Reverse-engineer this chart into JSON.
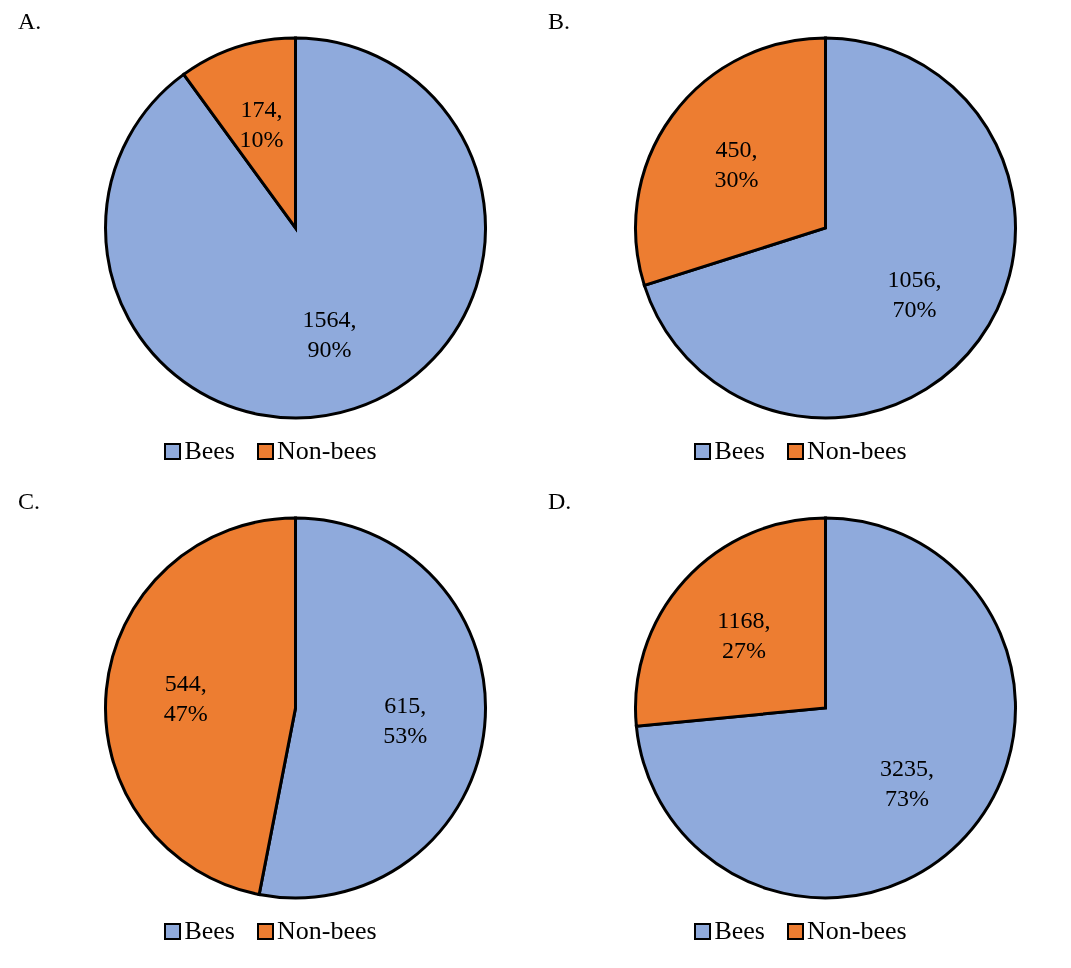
{
  "chart_data": [
    {
      "type": "pie",
      "title": "A.",
      "categories": [
        "Bees",
        "Non-bees"
      ],
      "values": [
        1564,
        174
      ],
      "colors": [
        "#8faadc",
        "#ed7d31"
      ],
      "value_labels": [
        "1564, 90%",
        "174, 10%"
      ],
      "legend": "bottom"
    },
    {
      "type": "pie",
      "title": "B.",
      "categories": [
        "Bees",
        "Non-bees"
      ],
      "values": [
        1056,
        450
      ],
      "colors": [
        "#8faadc",
        "#ed7d31"
      ],
      "value_labels": [
        "1056, 70%",
        "450, 30%"
      ],
      "legend": "bottom"
    },
    {
      "type": "pie",
      "title": "C.",
      "categories": [
        "Bees",
        "Non-bees"
      ],
      "values": [
        615,
        544
      ],
      "colors": [
        "#8faadc",
        "#ed7d31"
      ],
      "value_labels": [
        "615, 53%",
        "544, 47%"
      ],
      "legend": "bottom"
    },
    {
      "type": "pie",
      "title": "D.",
      "categories": [
        "Bees",
        "Non-bees"
      ],
      "values": [
        3235,
        1168
      ],
      "colors": [
        "#8faadc",
        "#ed7d31"
      ],
      "value_labels": [
        "3235, 73%",
        "1168, 27%"
      ],
      "legend": "bottom"
    }
  ]
}
